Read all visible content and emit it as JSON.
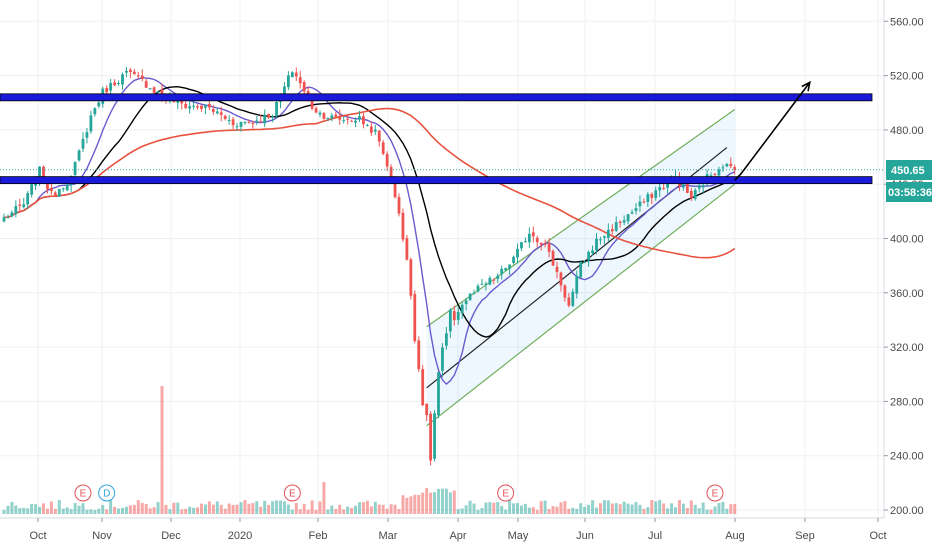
{
  "chart_data": {
    "type": "candlestick",
    "y_axis": {
      "ylim": [
        195,
        570
      ],
      "ticks": [
        200,
        240,
        280,
        320,
        360,
        400,
        440,
        480,
        520,
        560
      ],
      "tick_labels": [
        "200.00",
        "240.00",
        "280.00",
        "320.00",
        "360.00",
        "400.00",
        "440.00",
        "480.00",
        "520.00",
        "560.00"
      ]
    },
    "x_axis": {
      "tick_labels": [
        "Oct",
        "Nov",
        "Dec",
        "2020",
        "Feb",
        "Mar",
        "Apr",
        "May",
        "Jun",
        "Jul",
        "Aug",
        "Sep",
        "Oct"
      ]
    },
    "price_tags": {
      "last_price": "450.65",
      "countdown": "03:58:36"
    },
    "keypoints": [
      {
        "t": 0,
        "p": 415
      },
      {
        "t": 5,
        "p": 425
      },
      {
        "t": 9,
        "p": 450
      },
      {
        "t": 12,
        "p": 432
      },
      {
        "t": 17,
        "p": 445
      },
      {
        "t": 22,
        "p": 490
      },
      {
        "t": 25,
        "p": 508
      },
      {
        "t": 31,
        "p": 522
      },
      {
        "t": 35,
        "p": 516
      },
      {
        "t": 40,
        "p": 505
      },
      {
        "t": 46,
        "p": 498
      },
      {
        "t": 52,
        "p": 496
      },
      {
        "t": 58,
        "p": 485
      },
      {
        "t": 63,
        "p": 486
      },
      {
        "t": 68,
        "p": 492
      },
      {
        "t": 73,
        "p": 524
      },
      {
        "t": 75,
        "p": 515
      },
      {
        "t": 77,
        "p": 500
      },
      {
        "t": 80,
        "p": 492
      },
      {
        "t": 84,
        "p": 488
      },
      {
        "t": 90,
        "p": 488
      },
      {
        "t": 94,
        "p": 478
      },
      {
        "t": 97,
        "p": 455
      },
      {
        "t": 100,
        "p": 420
      },
      {
        "t": 103,
        "p": 360
      },
      {
        "t": 105,
        "p": 305
      },
      {
        "t": 107,
        "p": 262
      },
      {
        "t": 108,
        "p": 240
      },
      {
        "t": 110,
        "p": 300
      },
      {
        "t": 113,
        "p": 340
      },
      {
        "t": 117,
        "p": 355
      },
      {
        "t": 121,
        "p": 365
      },
      {
        "t": 125,
        "p": 372
      },
      {
        "t": 129,
        "p": 385
      },
      {
        "t": 133,
        "p": 405
      },
      {
        "t": 137,
        "p": 395
      },
      {
        "t": 140,
        "p": 375
      },
      {
        "t": 143,
        "p": 350
      },
      {
        "t": 146,
        "p": 380
      },
      {
        "t": 150,
        "p": 398
      },
      {
        "t": 155,
        "p": 410
      },
      {
        "t": 160,
        "p": 422
      },
      {
        "t": 165,
        "p": 435
      },
      {
        "t": 170,
        "p": 445
      },
      {
        "t": 174,
        "p": 430
      },
      {
        "t": 178,
        "p": 445
      },
      {
        "t": 182,
        "p": 455
      },
      {
        "t": 185,
        "p": 450
      }
    ],
    "moving_averages": [
      {
        "color": "#6a5acd",
        "window": 9
      },
      {
        "color": "#000000",
        "window": 20
      },
      {
        "color": "#e8523f",
        "window": 80
      }
    ],
    "horizontal_levels": [
      {
        "price": 504,
        "color": "#1a1adb"
      },
      {
        "price": 443,
        "color": "#1a1adb"
      }
    ],
    "last_price_value": 450.65,
    "channel": {
      "bottom": [
        {
          "t": 107,
          "p": 262
        },
        {
          "t": 185,
          "p": 440
        }
      ],
      "top": [
        {
          "t": 107,
          "p": 335
        },
        {
          "t": 185,
          "p": 495
        }
      ],
      "mid": [
        {
          "t": 107,
          "p": 290
        },
        {
          "t": 183,
          "p": 467
        }
      ]
    },
    "projection_arrow": [
      {
        "t": 185,
        "p": 443
      },
      {
        "t": 204,
        "p": 515
      }
    ],
    "events": [
      {
        "label": "E",
        "t": 20,
        "color": "#e0505a"
      },
      {
        "label": "D",
        "t": 26,
        "color": "#2ea3dd"
      },
      {
        "label": "E",
        "t": 73,
        "color": "#e0505a"
      },
      {
        "label": "E",
        "t": 127,
        "color": "#e0505a"
      },
      {
        "label": "E",
        "t": 180,
        "color": "#e0505a"
      }
    ],
    "volume_spikes": [
      {
        "t": 40,
        "v": 1.0
      },
      {
        "t": 81,
        "v": 0.25
      },
      {
        "t": 128,
        "v": 0.2
      }
    ],
    "colors": {
      "up": "#26a69a",
      "down": "#ef5350",
      "price_tag": "#26a69a",
      "grid": "#eef0f3",
      "axis_text": "#4a4a4a"
    }
  }
}
